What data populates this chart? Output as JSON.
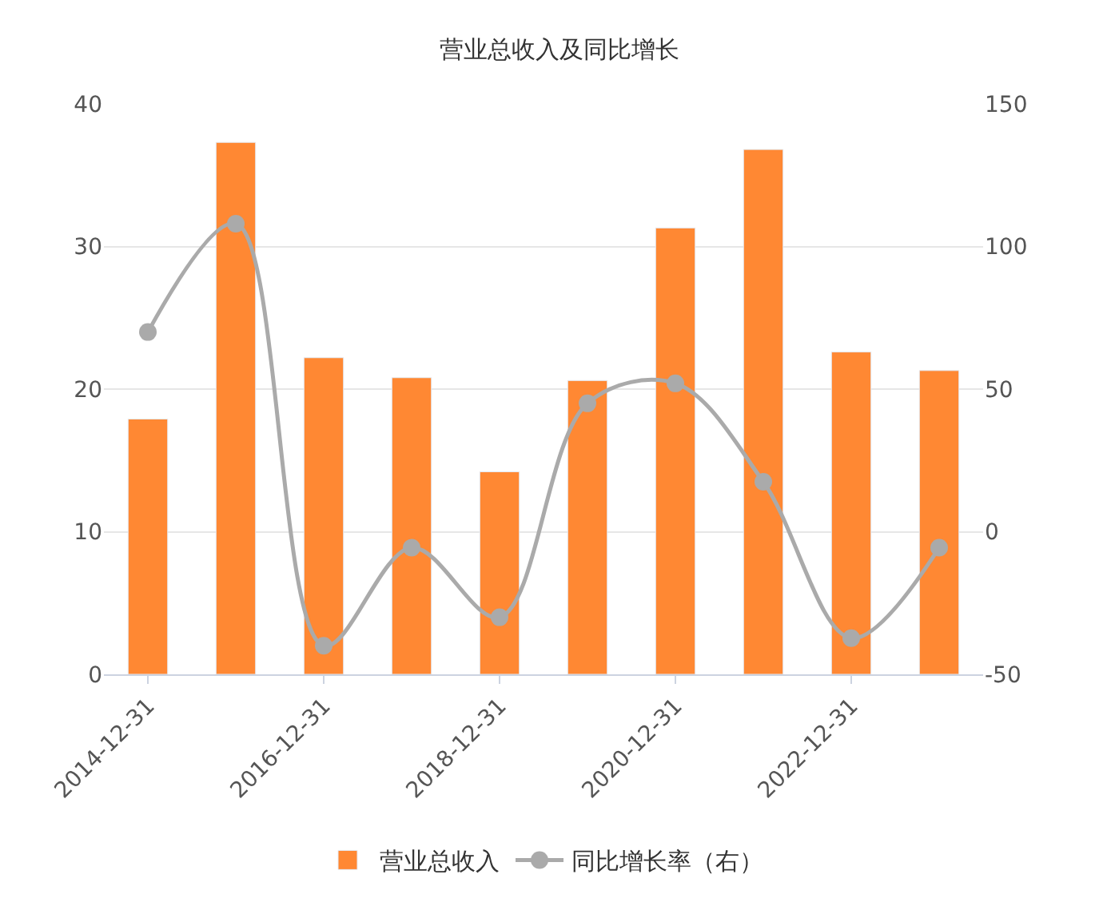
{
  "chart_data": {
    "type": "bar",
    "title": "营业总收入及同比增长",
    "categories": [
      "2014-12-31",
      null,
      "2016-12-31",
      null,
      "2018-12-31",
      null,
      "2020-12-31",
      null,
      "2022-12-31",
      null
    ],
    "series": [
      {
        "name": "营业总收入",
        "color": "#ff8833",
        "values": [
          17.9,
          37.3,
          22.2,
          20.8,
          14.2,
          20.6,
          31.3,
          36.8,
          22.6,
          21.3
        ]
      },
      {
        "name": "同比增长率（右）",
        "type": "line",
        "axis": "y2",
        "color": "#aaaaaa",
        "marker": "circle",
        "values": [
          70,
          108,
          -40,
          -5.6,
          -30,
          45,
          52,
          17.5,
          -37.3,
          -5.6
        ]
      }
    ],
    "ylim": [
      0,
      40
    ],
    "yticks": [
      0,
      10,
      20,
      30,
      40
    ],
    "y2lim": [
      -50,
      150
    ],
    "y2ticks": [
      -50,
      0,
      50,
      100,
      150
    ],
    "grid": "y",
    "legend": "bottom"
  }
}
